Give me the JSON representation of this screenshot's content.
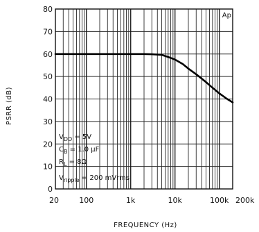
{
  "chart_data": {
    "type": "line",
    "xlabel": "FREQUENCY (Hz)",
    "ylabel": "PSRR (dB)",
    "x_scale": "log",
    "xlim": [
      20,
      200000
    ],
    "ylim": [
      0,
      80
    ],
    "grid": true,
    "x_ticks": [
      {
        "value": 20,
        "label": "20"
      },
      {
        "value": 100,
        "label": "100"
      },
      {
        "value": 1000,
        "label": "1k"
      },
      {
        "value": 10000,
        "label": "10k"
      },
      {
        "value": 100000,
        "label": "100k"
      },
      {
        "value": 200000,
        "label": "200k"
      }
    ],
    "y_ticks": [
      0,
      10,
      20,
      30,
      40,
      50,
      60,
      70,
      80
    ],
    "series": [
      {
        "x": [
          20,
          100,
          500,
          1000,
          2000,
          3000,
          5000,
          7000,
          10000,
          15000,
          20000,
          30000,
          50000,
          70000,
          100000,
          150000,
          200000
        ],
        "y": [
          60,
          60,
          60,
          60,
          60,
          59.9,
          59.6,
          58.7,
          57.5,
          55.5,
          53.5,
          51,
          47.5,
          45,
          42.5,
          40,
          38.5
        ]
      }
    ],
    "corner_label": "Ap",
    "conditions": [
      {
        "main": "V",
        "sub": "DD",
        "rest": " = 5V"
      },
      {
        "main": "C",
        "sub": "B",
        "rest": " = 1.0 μF"
      },
      {
        "main": "R",
        "sub": "L",
        "rest": " = 8Ω"
      },
      {
        "main": "V",
        "sub": "ripple",
        "rest": " = 200 mVrms"
      }
    ],
    "line_color": "#000000",
    "grid_color": "#2a2a2a"
  }
}
